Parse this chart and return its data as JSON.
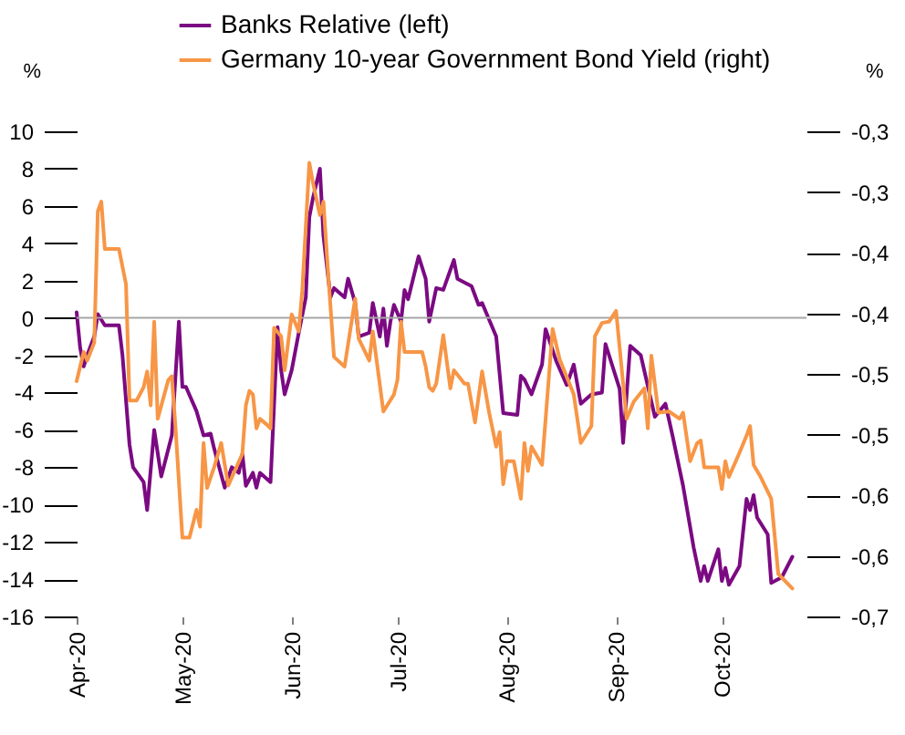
{
  "chart_data": {
    "type": "line",
    "ylabel": "%",
    "y2label": "%",
    "legend": "top",
    "grid": false,
    "xlim": [
      "2020-04-01",
      "2020-10-25"
    ],
    "xticks": [
      {
        "value": "2020-04-01",
        "label": "Apr-20"
      },
      {
        "value": "2020-05-01",
        "label": "May-20"
      },
      {
        "value": "2020-06-01",
        "label": "Jun-20"
      },
      {
        "value": "2020-07-01",
        "label": "Jul-20"
      },
      {
        "value": "2020-08-01",
        "label": "Aug-20"
      },
      {
        "value": "2020-09-01",
        "label": "Sep-20"
      },
      {
        "value": "2020-10-01",
        "label": "Oct-20"
      }
    ],
    "ylim": [
      -16,
      10
    ],
    "yticks": [
      -16,
      -14,
      -12,
      -10,
      -8,
      -6,
      -4,
      -2,
      0,
      2,
      4,
      6,
      8,
      10
    ],
    "y2lim": [
      -0.7,
      -0.3
    ],
    "y2ticks": [
      {
        "value": -0.3,
        "label": "-0,3"
      },
      {
        "value": -0.35,
        "label": "-0,3"
      },
      {
        "value": -0.4,
        "label": "-0,4"
      },
      {
        "value": -0.45,
        "label": "-0,4"
      },
      {
        "value": -0.5,
        "label": "-0,5"
      },
      {
        "value": -0.55,
        "label": "-0,5"
      },
      {
        "value": -0.6,
        "label": "-0,6"
      },
      {
        "value": -0.65,
        "label": "-0,6"
      },
      {
        "value": -0.7,
        "label": "-0,7"
      }
    ],
    "ref_lines": [
      {
        "axis": "y",
        "value": 0,
        "color": "#a6a6a6"
      }
    ],
    "series": [
      {
        "name": "Banks Relative (left)",
        "color": "#7b0a82",
        "x": [
          "2020-04-01",
          "2020-04-02",
          "2020-04-03",
          "2020-04-04",
          "2020-04-06",
          "2020-04-07",
          "2020-04-09",
          "2020-04-13",
          "2020-04-14",
          "2020-04-16",
          "2020-04-17",
          "2020-04-20",
          "2020-04-21",
          "2020-04-23",
          "2020-04-25",
          "2020-04-28",
          "2020-04-30",
          "2020-05-01",
          "2020-05-02",
          "2020-05-05",
          "2020-05-07",
          "2020-05-09",
          "2020-05-10",
          "2020-05-13",
          "2020-05-15",
          "2020-05-17",
          "2020-05-18",
          "2020-05-19",
          "2020-05-21",
          "2020-05-22",
          "2020-05-23",
          "2020-05-26",
          "2020-05-28",
          "2020-05-29",
          "2020-05-30",
          "2020-06-01",
          "2020-06-03",
          "2020-06-05",
          "2020-06-06",
          "2020-06-07",
          "2020-06-09",
          "2020-06-10",
          "2020-06-12",
          "2020-06-13",
          "2020-06-16",
          "2020-06-17",
          "2020-06-19",
          "2020-06-20",
          "2020-06-23",
          "2020-06-24",
          "2020-06-26",
          "2020-06-27",
          "2020-06-28",
          "2020-06-29",
          "2020-06-30",
          "2020-07-02",
          "2020-07-03",
          "2020-07-04",
          "2020-07-07",
          "2020-07-09",
          "2020-07-10",
          "2020-07-12",
          "2020-07-14",
          "2020-07-17",
          "2020-07-18",
          "2020-07-22",
          "2020-07-24",
          "2020-07-25",
          "2020-07-29",
          "2020-07-31",
          "2020-08-04",
          "2020-08-05",
          "2020-08-06",
          "2020-08-08",
          "2020-08-11",
          "2020-08-12",
          "2020-08-15",
          "2020-08-18",
          "2020-08-20",
          "2020-08-22",
          "2020-08-25",
          "2020-08-28",
          "2020-08-29",
          "2020-09-02",
          "2020-09-03",
          "2020-09-05",
          "2020-09-08",
          "2020-09-12",
          "2020-09-15",
          "2020-09-17",
          "2020-09-20",
          "2020-09-23",
          "2020-09-25",
          "2020-09-26",
          "2020-09-27",
          "2020-09-30",
          "2020-10-01",
          "2020-10-02",
          "2020-10-03",
          "2020-10-06",
          "2020-10-08",
          "2020-10-09",
          "2020-10-10",
          "2020-10-11",
          "2020-10-14",
          "2020-10-15",
          "2020-10-18",
          "2020-10-21"
        ],
        "values": [
          0.3,
          -1.6,
          -2.6,
          -2,
          -1,
          0.2,
          -0.4,
          -0.4,
          -2,
          -6.8,
          -8,
          -8.8,
          -10.3,
          -6,
          -8.5,
          -6.3,
          -0.2,
          -3.7,
          -3.7,
          -5,
          -6.3,
          -6.2,
          -7,
          -9.1,
          -8,
          -8.3,
          -7.3,
          -9,
          -8.3,
          -9.1,
          -8.3,
          -8.8,
          -0.5,
          -2.8,
          -4.1,
          -2.8,
          -0.8,
          1.1,
          5.4,
          6.4,
          8,
          4.4,
          1.1,
          1.6,
          1.1,
          2.1,
          0.8,
          -1,
          -0.8,
          0.8,
          -1,
          0.5,
          -1.5,
          -0.2,
          0.7,
          -0.2,
          1.5,
          1,
          3.3,
          2.1,
          -0.2,
          1.6,
          1.5,
          3.1,
          2.1,
          1.7,
          0.7,
          0.8,
          -1,
          -5.1,
          -5.2,
          -3.1,
          -3.3,
          -4.1,
          -2.5,
          -0.6,
          -2.3,
          -3.6,
          -2.5,
          -4.6,
          -4.1,
          -4,
          -1.4,
          -3.8,
          -6.7,
          -1.5,
          -2,
          -5.3,
          -4.6,
          -6.3,
          -9,
          -12.3,
          -14.1,
          -13.3,
          -14.1,
          -12.4,
          -14.1,
          -13.4,
          -14.3,
          -13.3,
          -9.7,
          -10.3,
          -9.5,
          -10.7,
          -11.6,
          -14.2,
          -13.9,
          -12.8
        ]
      },
      {
        "name": "Germany 10-year Government Bond Yield (right)",
        "color": "#f79646",
        "axis": "y2",
        "x": [
          "2020-04-01",
          "2020-04-03",
          "2020-04-04",
          "2020-04-06",
          "2020-04-07",
          "2020-04-08",
          "2020-04-09",
          "2020-04-13",
          "2020-04-15",
          "2020-04-16",
          "2020-04-18",
          "2020-04-20",
          "2020-04-21",
          "2020-04-22",
          "2020-04-23",
          "2020-04-24",
          "2020-04-27",
          "2020-04-28",
          "2020-04-29",
          "2020-05-01",
          "2020-05-03",
          "2020-05-05",
          "2020-05-06",
          "2020-05-07",
          "2020-05-08",
          "2020-05-10",
          "2020-05-12",
          "2020-05-14",
          "2020-05-18",
          "2020-05-19",
          "2020-05-20",
          "2020-05-21",
          "2020-05-22",
          "2020-05-23",
          "2020-05-25",
          "2020-05-26",
          "2020-05-27",
          "2020-05-29",
          "2020-05-30",
          "2020-06-01",
          "2020-06-03",
          "2020-06-04",
          "2020-06-06",
          "2020-06-07",
          "2020-06-09",
          "2020-06-10",
          "2020-06-11",
          "2020-06-13",
          "2020-06-16",
          "2020-06-19",
          "2020-06-20",
          "2020-06-23",
          "2020-06-24",
          "2020-06-27",
          "2020-06-30",
          "2020-07-01",
          "2020-07-02",
          "2020-07-03",
          "2020-07-08",
          "2020-07-09",
          "2020-07-10",
          "2020-07-11",
          "2020-07-12",
          "2020-07-14",
          "2020-07-16",
          "2020-07-17",
          "2020-07-20",
          "2020-07-21",
          "2020-07-23",
          "2020-07-25",
          "2020-07-27",
          "2020-07-29",
          "2020-07-30",
          "2020-07-31",
          "2020-08-01",
          "2020-08-03",
          "2020-08-05",
          "2020-08-06",
          "2020-08-07",
          "2020-08-08",
          "2020-08-11",
          "2020-08-14",
          "2020-08-16",
          "2020-08-20",
          "2020-08-22",
          "2020-08-25",
          "2020-08-26",
          "2020-08-28",
          "2020-08-30",
          "2020-09-01",
          "2020-09-03",
          "2020-09-04",
          "2020-09-06",
          "2020-09-09",
          "2020-09-10",
          "2020-09-11",
          "2020-09-13",
          "2020-09-16",
          "2020-09-19",
          "2020-09-20",
          "2020-09-22",
          "2020-09-24",
          "2020-09-25",
          "2020-09-26",
          "2020-09-30",
          "2020-10-01",
          "2020-10-02",
          "2020-10-03",
          "2020-10-06",
          "2020-10-08",
          "2020-10-09",
          "2020-10-10",
          "2020-10-12",
          "2020-10-15",
          "2020-10-17",
          "2020-10-21"
        ],
        "values": [
          -0.506,
          -0.482,
          -0.489,
          -0.474,
          -0.366,
          -0.358,
          -0.397,
          -0.397,
          -0.426,
          -0.522,
          -0.522,
          -0.511,
          -0.498,
          -0.526,
          -0.457,
          -0.537,
          -0.505,
          -0.502,
          -0.542,
          -0.635,
          -0.635,
          -0.612,
          -0.626,
          -0.557,
          -0.594,
          -0.577,
          -0.557,
          -0.592,
          -0.566,
          -0.526,
          -0.514,
          -0.517,
          -0.545,
          -0.537,
          -0.542,
          -0.545,
          -0.462,
          -0.469,
          -0.497,
          -0.451,
          -0.465,
          -0.431,
          -0.326,
          -0.342,
          -0.369,
          -0.358,
          -0.403,
          -0.486,
          -0.494,
          -0.438,
          -0.471,
          -0.489,
          -0.465,
          -0.531,
          -0.517,
          -0.505,
          -0.457,
          -0.482,
          -0.482,
          -0.494,
          -0.511,
          -0.514,
          -0.508,
          -0.468,
          -0.512,
          -0.497,
          -0.508,
          -0.508,
          -0.54,
          -0.498,
          -0.532,
          -0.56,
          -0.548,
          -0.591,
          -0.572,
          -0.572,
          -0.603,
          -0.557,
          -0.58,
          -0.56,
          -0.575,
          -0.463,
          -0.488,
          -0.517,
          -0.557,
          -0.543,
          -0.469,
          -0.458,
          -0.457,
          -0.448,
          -0.508,
          -0.537,
          -0.523,
          -0.512,
          -0.545,
          -0.485,
          -0.532,
          -0.531,
          -0.537,
          -0.532,
          -0.572,
          -0.557,
          -0.555,
          -0.577,
          -0.577,
          -0.595,
          -0.572,
          -0.585,
          -0.565,
          -0.551,
          -0.543,
          -0.575,
          -0.585,
          -0.603,
          -0.665,
          -0.677
        ]
      }
    ]
  }
}
